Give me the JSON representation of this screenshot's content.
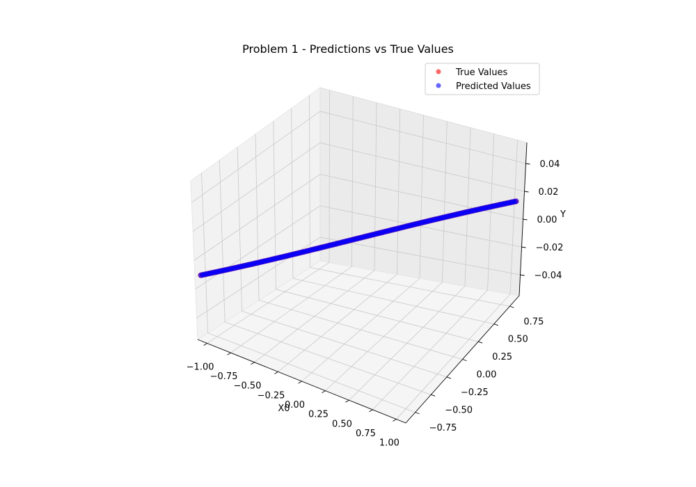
{
  "chart_data": {
    "type": "scatter",
    "title": "Problem 1 - Predictions vs True Values",
    "xlabel": "X0",
    "ylabel": "",
    "zlabel": "Y",
    "x_ticks": [
      "−1.00",
      "−0.75",
      "−0.50",
      "−0.25",
      "0.00",
      "0.25",
      "0.50",
      "0.75",
      "1.00"
    ],
    "y_ticks": [
      "−0.75",
      "−0.50",
      "−0.25",
      "0.00",
      "0.25",
      "0.50",
      "0.75"
    ],
    "z_ticks": [
      "−0.04",
      "−0.02",
      "0.00",
      "0.02",
      "0.04"
    ],
    "xlim": [
      -1.1,
      1.1
    ],
    "ylim": [
      -0.9,
      0.9
    ],
    "zlim": [
      -0.055,
      0.055
    ],
    "grid": true,
    "legend_placement": "top-right",
    "series": [
      {
        "name": "True Values",
        "color": "#ff0000",
        "alpha": 0.6,
        "x_range": [
          -1.0,
          1.0
        ],
        "y_range": [
          -1.0,
          1.0
        ],
        "z_constant": 0.0
      },
      {
        "name": "Predicted Values",
        "color": "#0000ff",
        "alpha": 0.6,
        "x_range": [
          -1.0,
          1.0
        ],
        "y_range": [
          -1.0,
          1.0
        ],
        "z_constant": 0.0
      }
    ]
  }
}
